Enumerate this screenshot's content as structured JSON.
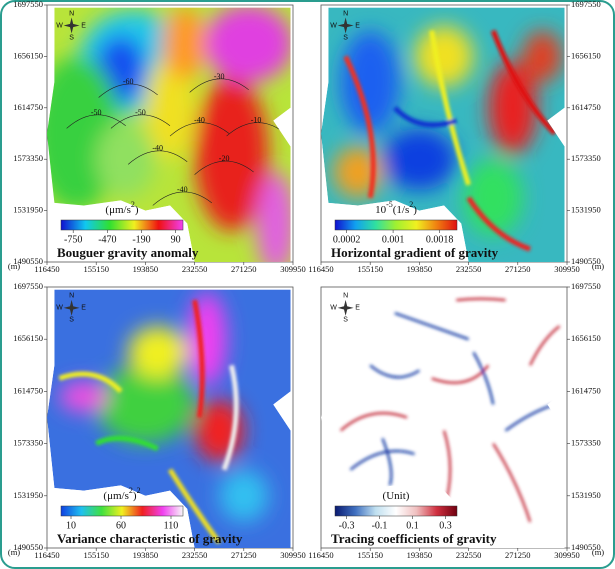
{
  "axes": {
    "unit": "(m)",
    "xlim": [
      116450,
      309950
    ],
    "ylim": [
      1490550,
      1697550
    ],
    "xticks": [
      116450,
      155150,
      193850,
      232550,
      271250,
      309950
    ],
    "yticks": [
      1490550,
      1531950,
      1573350,
      1614750,
      1656150,
      1697550
    ]
  },
  "compass": {
    "n": "N",
    "s": "S",
    "w": "W",
    "e": "E"
  },
  "panels": [
    {
      "title": "Bouguer gravity anomaly",
      "colorbar": {
        "label": [
          {
            "text": "(μm/s"
          },
          {
            "text": "2",
            "sup": true
          },
          {
            "text": ")"
          }
        ],
        "ticks": [
          -750,
          -470,
          -190,
          90
        ],
        "clim": [
          -850,
          150
        ],
        "colors": [
          "#1010d0",
          "#10c8f0",
          "#30e030",
          "#f0f020",
          "#f01010",
          "#f040f0"
        ]
      },
      "contour_labels": [
        -60,
        -50,
        -50,
        -40,
        -40,
        -40,
        -20,
        -10,
        -30
      ]
    },
    {
      "title": "Horizontal gradient of gravity",
      "colorbar": {
        "label": [
          {
            "text": "10"
          },
          {
            "text": "-5",
            "sup": true
          },
          {
            "text": "(1/s"
          },
          {
            "text": "2",
            "sup": true
          },
          {
            "text": ")"
          }
        ],
        "ticks": [
          0.0002,
          0.001,
          0.0018
        ],
        "clim": [
          0,
          0.0021
        ],
        "colors": [
          "#1010d0",
          "#10a0f0",
          "#30e0a0",
          "#a0f030",
          "#f0f020",
          "#f08010",
          "#e01010"
        ]
      },
      "contour_labels": []
    },
    {
      "title": "Variance characteristic of gravity",
      "colorbar": {
        "label": [
          {
            "text": "(μm/s"
          },
          {
            "text": "2",
            "sup": true
          },
          {
            "text": ")"
          },
          {
            "text": "2",
            "sup": true
          }
        ],
        "ticks": [
          10,
          60,
          110
        ],
        "clim": [
          0,
          122
        ],
        "colors": [
          "#1040e0",
          "#20c0f0",
          "#40e040",
          "#f0f020",
          "#f02020",
          "#f040f0",
          "#f8f8f8"
        ]
      },
      "contour_labels": []
    },
    {
      "title": "Tracing coefficients of gravity",
      "colorbar": {
        "label": [
          {
            "text": "(Unit)"
          }
        ],
        "ticks": [
          -0.3,
          -0.1,
          0.1,
          0.3
        ],
        "clim": [
          -0.37,
          0.37
        ],
        "colors": [
          "#0a1a70",
          "#4070c0",
          "#c0e0f0",
          "#ffffff",
          "#f0c0c0",
          "#d03040",
          "#700010"
        ]
      },
      "contour_labels": []
    }
  ]
}
